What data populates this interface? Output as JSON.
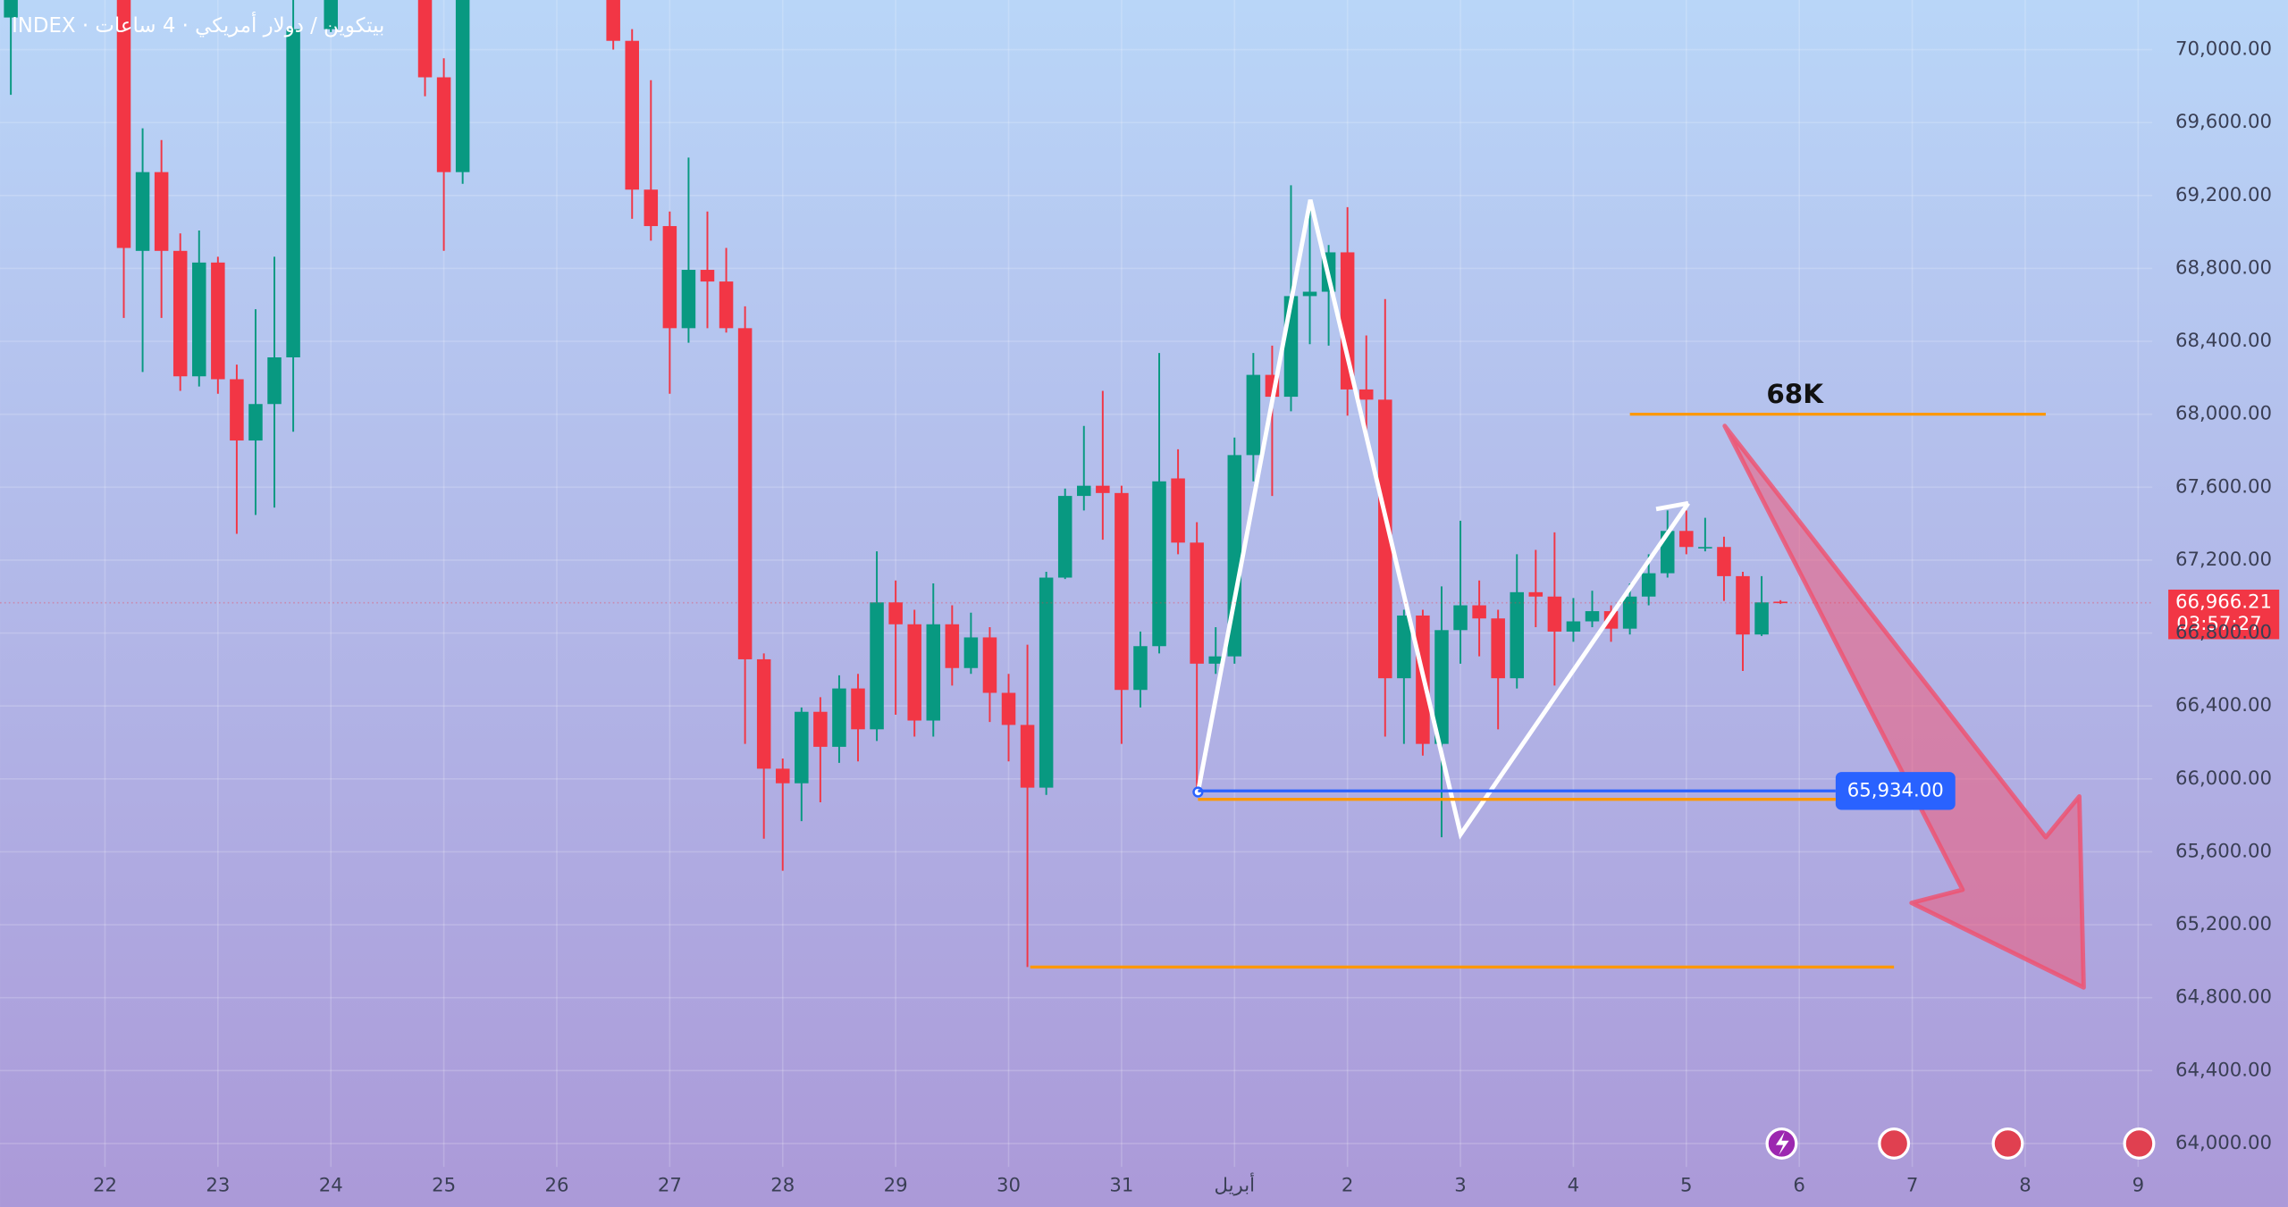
{
  "chart_data": {
    "type": "candlestick",
    "title": "INDEX · بيتكوين / دولار أمريكي · 4 ساعات",
    "up_color": "#089981",
    "down_color": "#f23645",
    "grid": true,
    "xlim": [
      -22.3,
      435
    ],
    "ylim": [
      63872,
      70272
    ],
    "xticks": [
      {
        "value": 0,
        "label": "22"
      },
      {
        "value": 24,
        "label": "23"
      },
      {
        "value": 48,
        "label": "24"
      },
      {
        "value": 72,
        "label": "25"
      },
      {
        "value": 96,
        "label": "26"
      },
      {
        "value": 120,
        "label": "27"
      },
      {
        "value": 144,
        "label": "28"
      },
      {
        "value": 168,
        "label": "29"
      },
      {
        "value": 192,
        "label": "30"
      },
      {
        "value": 216,
        "label": "31"
      },
      {
        "value": 240,
        "label": "أبريل"
      },
      {
        "value": 264,
        "label": "2"
      },
      {
        "value": 288,
        "label": "3"
      },
      {
        "value": 312,
        "label": "4"
      },
      {
        "value": 336,
        "label": "5"
      },
      {
        "value": 360,
        "label": "6"
      },
      {
        "value": 384,
        "label": "7"
      },
      {
        "value": 408,
        "label": "8"
      },
      {
        "value": 432,
        "label": "9"
      }
    ],
    "yticks": [
      {
        "value": 64000,
        "label": "64,000.00"
      },
      {
        "value": 64400,
        "label": "64,400.00"
      },
      {
        "value": 64800,
        "label": "64,800.00"
      },
      {
        "value": 65200,
        "label": "65,200.00"
      },
      {
        "value": 65600,
        "label": "65,600.00"
      },
      {
        "value": 66000,
        "label": "66,000.00"
      },
      {
        "value": 66400,
        "label": "66,400.00"
      },
      {
        "value": 66800,
        "label": "66,800.00"
      },
      {
        "value": 67200,
        "label": "67,200.00"
      },
      {
        "value": 67600,
        "label": "67,600.00"
      },
      {
        "value": 68000,
        "label": "68,000.00"
      },
      {
        "value": 68400,
        "label": "68,400.00"
      },
      {
        "value": 68800,
        "label": "68,800.00"
      },
      {
        "value": 69200,
        "label": "69,200.00"
      },
      {
        "value": 69600,
        "label": "69,600.00"
      },
      {
        "value": 70000,
        "label": "70,000.00"
      }
    ],
    "candles": {
      "x": [
        -20,
        4,
        8,
        12,
        16,
        20,
        24,
        28,
        32,
        36,
        40,
        48,
        68,
        72,
        76,
        108,
        112,
        116,
        120,
        124,
        128,
        132,
        136,
        140,
        144,
        148,
        152,
        156,
        160,
        164,
        168,
        172,
        176,
        180,
        184,
        188,
        192,
        196,
        200,
        204,
        208,
        212,
        216,
        220,
        224,
        228,
        232,
        236,
        240,
        244,
        248,
        252,
        256,
        260,
        264,
        268,
        272,
        276,
        280,
        284,
        288,
        292,
        296,
        300,
        304,
        308,
        312,
        316,
        320,
        324,
        328,
        332,
        336,
        340,
        344,
        348,
        352,
        356
      ],
      "open": [
        70176,
        70380,
        68896,
        69328,
        68896,
        68208,
        68832,
        68192,
        67856,
        68056,
        68312,
        70112,
        70380,
        69848,
        69328,
        70380,
        70048,
        69232,
        69032,
        68472,
        68792,
        68728,
        68472,
        66656,
        66056,
        65976,
        66368,
        66176,
        66496,
        66272,
        66968,
        66848,
        66320,
        66848,
        66608,
        66776,
        66472,
        66296,
        65952,
        67104,
        67552,
        67608,
        67568,
        66488,
        66728,
        67648,
        67296,
        66632,
        66672,
        67776,
        68216,
        68096,
        68648,
        68672,
        68888,
        68136,
        68080,
        66552,
        66896,
        66192,
        66816,
        66952,
        66880,
        66552,
        67024,
        67000,
        66808,
        66864,
        66920,
        66824,
        67000,
        67128,
        67360,
        67264,
        67272,
        67112,
        66792,
        66972
      ],
      "high": [
        70380,
        70420,
        69568,
        69504,
        68992,
        69008,
        68864,
        68272,
        68576,
        68864,
        70380,
        70420,
        70420,
        69952,
        70420,
        70420,
        70112,
        69832,
        69112,
        69408,
        69112,
        68912,
        68592,
        66688,
        66112,
        66392,
        66448,
        66568,
        66576,
        67248,
        67088,
        66928,
        67072,
        66952,
        66912,
        66832,
        66576,
        66736,
        67136,
        67592,
        67936,
        68128,
        67608,
        66808,
        68336,
        67808,
        67408,
        66832,
        67872,
        68336,
        68376,
        69256,
        69152,
        68928,
        69136,
        68432,
        68632,
        66928,
        66928,
        67056,
        67416,
        67088,
        66928,
        67232,
        67256,
        67352,
        66992,
        67032,
        66952,
        67072,
        67232,
        67472,
        67472,
        67432,
        67328,
        67136,
        67112,
        66980
      ],
      "low": [
        69752,
        68528,
        68232,
        68528,
        68128,
        68152,
        68112,
        67344,
        67448,
        67488,
        67904,
        70096,
        69744,
        68896,
        69264,
        70000,
        69072,
        68952,
        68112,
        68392,
        68472,
        68448,
        66192,
        65672,
        65496,
        65768,
        65872,
        66088,
        66096,
        66208,
        66352,
        66232,
        66232,
        66512,
        66576,
        66312,
        66096,
        64968,
        65912,
        67096,
        67472,
        67312,
        66192,
        66392,
        66688,
        67232,
        65928,
        66576,
        66632,
        67632,
        67552,
        68016,
        68384,
        68376,
        67992,
        67896,
        66232,
        66192,
        66128,
        65680,
        66632,
        66672,
        66272,
        66496,
        66832,
        66512,
        66752,
        66832,
        66752,
        66792,
        66952,
        67104,
        67232,
        67248,
        66976,
        66592,
        66784,
        66960
      ],
      "close": [
        70320,
        68912,
        69328,
        68896,
        68208,
        68832,
        68192,
        67856,
        68056,
        68312,
        70112,
        70380,
        69848,
        69328,
        70380,
        70048,
        69232,
        69032,
        68472,
        68792,
        68728,
        68472,
        66656,
        66056,
        65976,
        66368,
        66176,
        66496,
        66272,
        66968,
        66848,
        66320,
        66848,
        66608,
        66776,
        66472,
        66296,
        65952,
        67104,
        67552,
        67608,
        67568,
        66488,
        66728,
        67632,
        67296,
        66632,
        66672,
        67776,
        68216,
        68096,
        68648,
        68672,
        68888,
        68136,
        68080,
        66552,
        66896,
        66192,
        66816,
        66952,
        66880,
        66552,
        67024,
        67000,
        66808,
        66864,
        66920,
        66824,
        67000,
        67128,
        67360,
        67272,
        67272,
        67112,
        66792,
        66968,
        66966.21
      ]
    },
    "last_price": {
      "value": 66966.21,
      "label": "66,966.21"
    },
    "countdown": "03:57:27",
    "target_label": "68K",
    "levels": [
      {
        "value": 68000,
        "color": "#ff9800"
      },
      {
        "value": 65934,
        "color": "#2962ff",
        "label": "65,934.00"
      },
      {
        "value": 65888,
        "color": "#ff9800"
      },
      {
        "value": 64968,
        "color": "#ff9800"
      }
    ]
  }
}
